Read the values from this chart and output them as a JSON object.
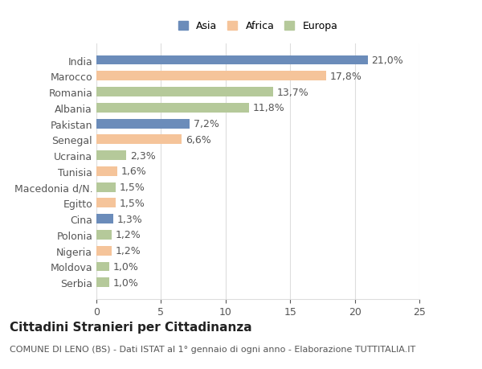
{
  "categories": [
    "India",
    "Marocco",
    "Romania",
    "Albania",
    "Pakistan",
    "Senegal",
    "Ucraina",
    "Tunisia",
    "Macedonia d/N.",
    "Egitto",
    "Cina",
    "Polonia",
    "Nigeria",
    "Moldova",
    "Serbia"
  ],
  "values": [
    21.0,
    17.8,
    13.7,
    11.8,
    7.2,
    6.6,
    2.3,
    1.6,
    1.5,
    1.5,
    1.3,
    1.2,
    1.2,
    1.0,
    1.0
  ],
  "labels": [
    "21,0%",
    "17,8%",
    "13,7%",
    "11,8%",
    "7,2%",
    "6,6%",
    "2,3%",
    "1,6%",
    "1,5%",
    "1,5%",
    "1,3%",
    "1,2%",
    "1,2%",
    "1,0%",
    "1,0%"
  ],
  "colors": [
    "#6b8cba",
    "#f5c49a",
    "#b5c99a",
    "#b5c99a",
    "#6b8cba",
    "#f5c49a",
    "#b5c99a",
    "#f5c49a",
    "#b5c99a",
    "#f5c49a",
    "#6b8cba",
    "#b5c99a",
    "#f5c49a",
    "#b5c99a",
    "#b5c99a"
  ],
  "legend_labels": [
    "Asia",
    "Africa",
    "Europa"
  ],
  "legend_colors": [
    "#6b8cba",
    "#f5c49a",
    "#b5c99a"
  ],
  "title": "Cittadini Stranieri per Cittadinanza",
  "subtitle": "COMUNE DI LENO (BS) - Dati ISTAT al 1° gennaio di ogni anno - Elaborazione TUTTITALIA.IT",
  "xlim": [
    0,
    25
  ],
  "xticks": [
    0,
    5,
    10,
    15,
    20,
    25
  ],
  "background_color": "#ffffff",
  "grid_color": "#dddddd",
  "label_fontsize": 9,
  "tick_fontsize": 9,
  "title_fontsize": 11,
  "subtitle_fontsize": 8
}
